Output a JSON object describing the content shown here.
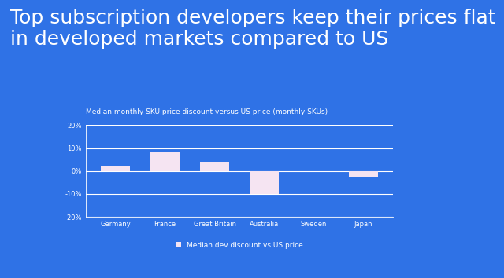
{
  "chart_data": {
    "type": "bar",
    "title": "Top subscription developers keep their prices flat in developed markets compared to US",
    "subtitle": "Median monthly SKU price discount versus US price (monthly SKUs)",
    "categories": [
      "Germany",
      "France",
      "Great Britain",
      "Australia",
      "Sweden",
      "Japan"
    ],
    "series": [
      {
        "name": "Median dev discount vs US price",
        "color": "#f5e4f2",
        "values": [
          2,
          8,
          4,
          -10,
          0,
          -3
        ]
      }
    ],
    "ylim": [
      -20,
      20
    ],
    "yticks": [
      {
        "value": -20,
        "label": "-20%"
      },
      {
        "value": -10,
        "label": "-10%"
      },
      {
        "value": 0,
        "label": "0%"
      },
      {
        "value": 10,
        "label": "10%"
      },
      {
        "value": 20,
        "label": "20%"
      }
    ],
    "grid": true,
    "legend": "bottom"
  }
}
